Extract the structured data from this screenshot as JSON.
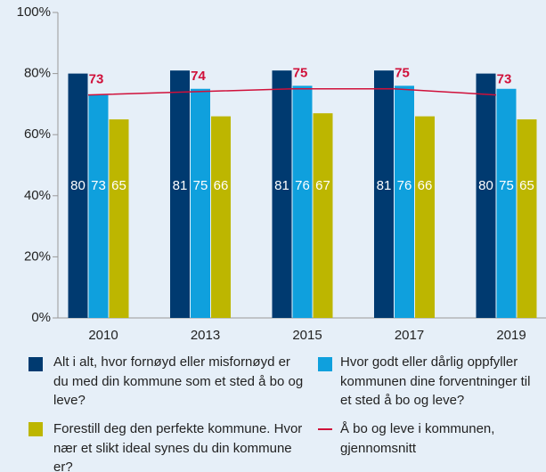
{
  "chart_data": {
    "type": "bar",
    "categories": [
      "2010",
      "2013",
      "2015",
      "2017",
      "2019"
    ],
    "series": [
      {
        "name": "Alt i alt, hvor fornøyd eller misfornøyd er du med din kommune som et sted å bo og leve?",
        "color": "#003a70",
        "values": [
          80,
          81,
          81,
          81,
          80
        ]
      },
      {
        "name": "Hvor godt eller dårlig oppfyller kommunen dine forventninger til et sted å bo og leve?",
        "color": "#0fa0dd",
        "values": [
          73,
          75,
          76,
          76,
          75
        ]
      },
      {
        "name": "Forestill deg den perfekte kommune. Hvor nær et slikt ideal synes du din kommune er?",
        "color": "#bdb600",
        "values": [
          65,
          66,
          67,
          66,
          65
        ]
      },
      {
        "name": "Å bo og leve i kommunen, gjennomsnitt",
        "color": "#d0103a",
        "type": "line",
        "values": [
          73,
          74,
          75,
          75,
          73
        ]
      }
    ],
    "ylim": [
      0,
      100
    ],
    "yticks": [
      {
        "value": 0,
        "label": "0%"
      },
      {
        "value": 20,
        "label": "20%"
      },
      {
        "value": 40,
        "label": "40%"
      },
      {
        "value": 60,
        "label": "60%"
      },
      {
        "value": 80,
        "label": "80%"
      },
      {
        "value": 100,
        "label": "100%"
      }
    ],
    "background": "#e6eff8"
  }
}
